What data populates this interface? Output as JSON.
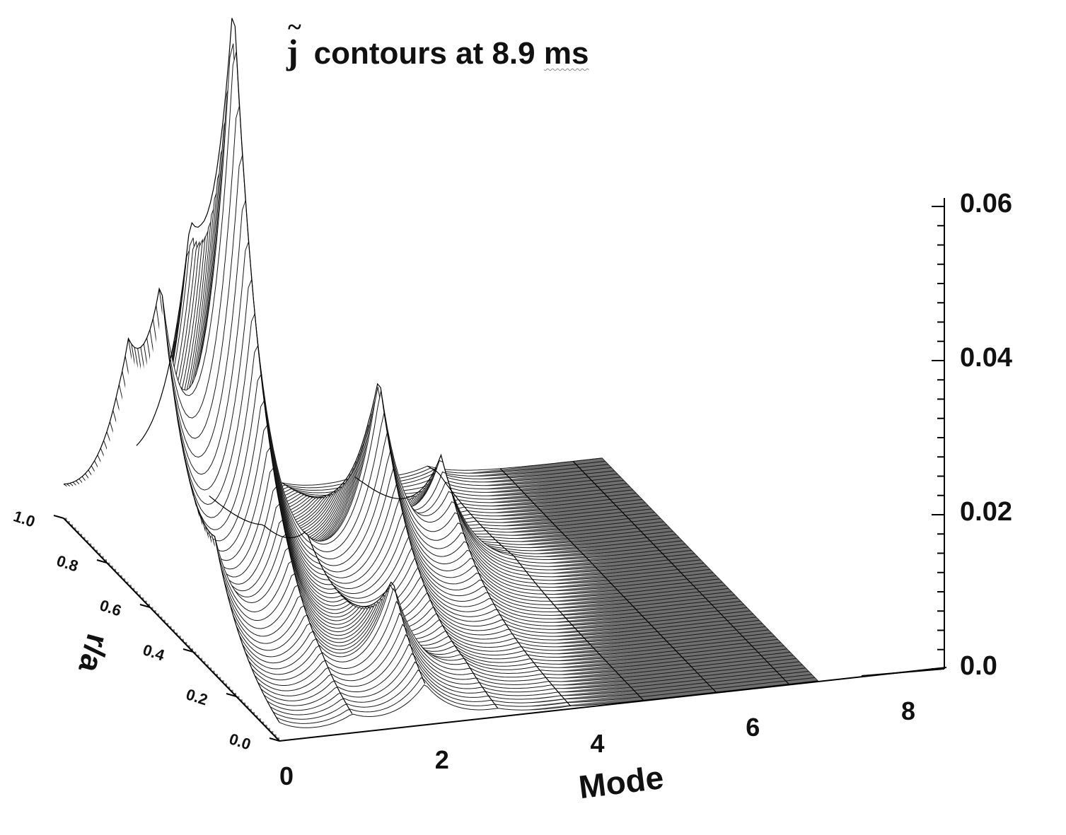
{
  "title": {
    "symbol": "j",
    "accent": "~",
    "text": "contours at 8.9",
    "unit": "ms"
  },
  "chart_data": {
    "type": "surface3d",
    "title": "j̃ contours at 8.9 ms",
    "xlabel": "Mode",
    "ylabel": "r/a",
    "zlabel": "",
    "x_ticks": [
      "0",
      "2",
      "4",
      "6",
      "8"
    ],
    "y_ticks": [
      "0.0",
      "0.2",
      "0.4",
      "0.6",
      "0.8",
      "1.0"
    ],
    "z_ticks": [
      "0.0",
      "0.02",
      "0.04",
      "0.06"
    ],
    "xlim": [
      0,
      8
    ],
    "ylim": [
      0,
      1
    ],
    "zlim": [
      0,
      0.06
    ],
    "peaks": [
      {
        "mode": 0,
        "r_over_a": 0.7,
        "value": 0.017
      },
      {
        "mode": 0,
        "r_over_a": 0.55,
        "value": 0.03
      },
      {
        "mode": 0,
        "r_over_a": 0.3,
        "value": 0.01
      },
      {
        "mode": 1,
        "r_over_a": 0.55,
        "value": 0.07
      },
      {
        "mode": 1,
        "r_over_a": 0.75,
        "value": 0.025
      },
      {
        "mode": 2,
        "r_over_a": 0.15,
        "value": 0.014
      },
      {
        "mode": 3,
        "r_over_a": 0.55,
        "value": 0.027
      },
      {
        "mode": 4,
        "r_over_a": 0.6,
        "value": 0.014
      },
      {
        "mode": 5,
        "r_over_a": 0.95,
        "value": 0.002
      }
    ],
    "grid": false
  }
}
